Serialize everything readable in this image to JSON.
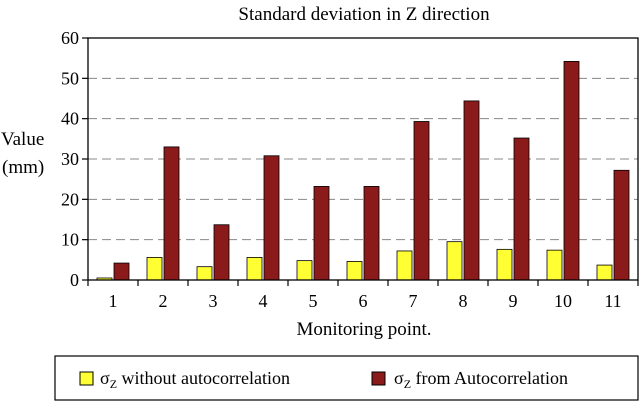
{
  "chart_data": {
    "type": "bar",
    "title": "Standard deviation in Z direction",
    "xlabel": "Monitoring point.",
    "ylabel_lines": [
      "Value",
      "(mm)"
    ],
    "ylim": [
      0,
      60
    ],
    "yticks": [
      "0",
      "10",
      "20",
      "30",
      "40",
      "50",
      "60"
    ],
    "grid": "horizontal dashed",
    "categories": [
      "1",
      "2",
      "3",
      "4",
      "5",
      "6",
      "7",
      "8",
      "9",
      "10",
      "11"
    ],
    "series": [
      {
        "legend_symbol": "σ",
        "legend_subscript": "Z",
        "legend_text": " without autocorrelation",
        "color": "#ffff33",
        "values": [
          0.5,
          5.6,
          3.3,
          5.6,
          4.8,
          4.6,
          7.2,
          9.5,
          7.6,
          7.4,
          3.7
        ]
      },
      {
        "legend_symbol": "σ",
        "legend_subscript": "Z",
        "legend_text": " from Autocorrelation",
        "color": "#8b1a1a",
        "values": [
          4.2,
          33,
          13.7,
          30.8,
          23.2,
          23.2,
          39.3,
          44.4,
          35.2,
          54.2,
          27.2
        ]
      }
    ],
    "legend_position": "bottom"
  }
}
